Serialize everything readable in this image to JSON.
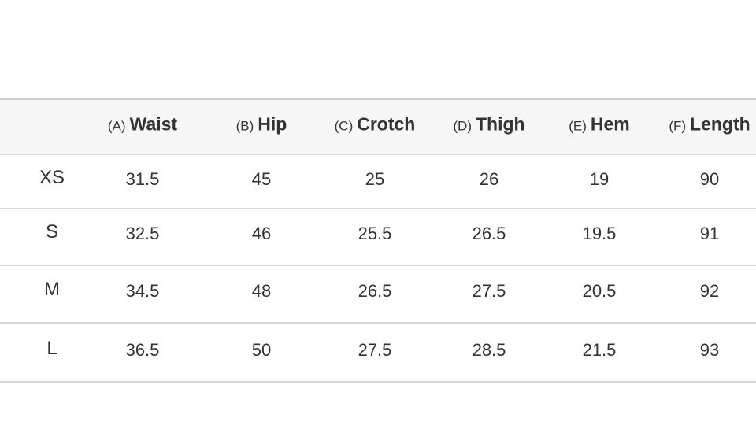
{
  "table": {
    "headers": [
      {
        "letter": "(A)",
        "name": "Waist"
      },
      {
        "letter": "(B)",
        "name": "Hip"
      },
      {
        "letter": "(C)",
        "name": "Crotch"
      },
      {
        "letter": "(D)",
        "name": "Thigh"
      },
      {
        "letter": "(E)",
        "name": "Hem"
      },
      {
        "letter": "(F)",
        "name": "Length"
      }
    ],
    "rows": [
      {
        "size": "XS",
        "values": [
          31.5,
          45,
          25,
          26,
          19,
          90
        ]
      },
      {
        "size": "S",
        "values": [
          32.5,
          46,
          25.5,
          26.5,
          19.5,
          91
        ]
      },
      {
        "size": "M",
        "values": [
          34.5,
          48,
          26.5,
          27.5,
          20.5,
          92
        ]
      },
      {
        "size": "L",
        "values": [
          36.5,
          50,
          27.5,
          28.5,
          21.5,
          93
        ]
      }
    ]
  }
}
